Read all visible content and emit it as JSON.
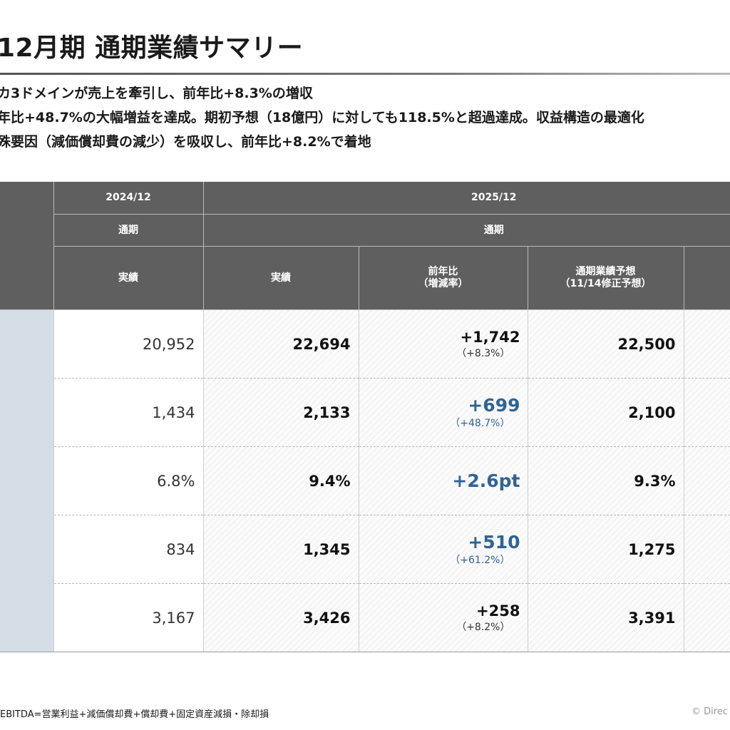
{
  "title": "12月期 通期業績サマリー",
  "bullets": [
    "カ3ドメインが売上を牽引し、前年比+8.3%の増収",
    "年比+48.7%の大幅増益を達成。期初予想（18億円）に対しても118.5%と超過達成。収益構造の最適化",
    "殊要因（減価償却費の減少）を吸収し、前年比+8.2%で着地"
  ],
  "table": {
    "header_year_prev": "2024/12",
    "header_year_curr": "2025/12",
    "header_period_prev": "通期",
    "header_period_curr": "通期",
    "col_prev_actual": "実績",
    "col_curr_actual": "実績",
    "col_yoy": "前年比\n（増減率）",
    "col_forecast": "通期業績予想\n（11/14修正予想）",
    "rows": [
      {
        "prev": "20,952",
        "curr": "22,694",
        "diff": "+1,742",
        "pct": "（+8.3%）",
        "forecast": "22,500"
      },
      {
        "prev": "1,434",
        "curr": "2,133",
        "diff": "+699",
        "pct": "（+48.7%）",
        "forecast": "2,100"
      },
      {
        "prev": "6.8%",
        "curr": "9.4%",
        "diff": "+2.6pt",
        "pct": "",
        "forecast": "9.3%"
      },
      {
        "prev": "834",
        "curr": "1,345",
        "diff": "+510",
        "pct": "（+61.2%）",
        "forecast": "1,275"
      },
      {
        "prev": "3,167",
        "curr": "3,426",
        "diff": "+258",
        "pct": "（+8.2%）",
        "forecast": "3,391"
      }
    ]
  },
  "footnote": "EBITDA=営業利益+減価償却費+償却費+固定資産減損・除却損",
  "copyright": "© Direc",
  "colors": {
    "header_bg": "#5f5f60",
    "label_col_bg": "#d5dde7",
    "highlight_blue": "#2f6494"
  }
}
